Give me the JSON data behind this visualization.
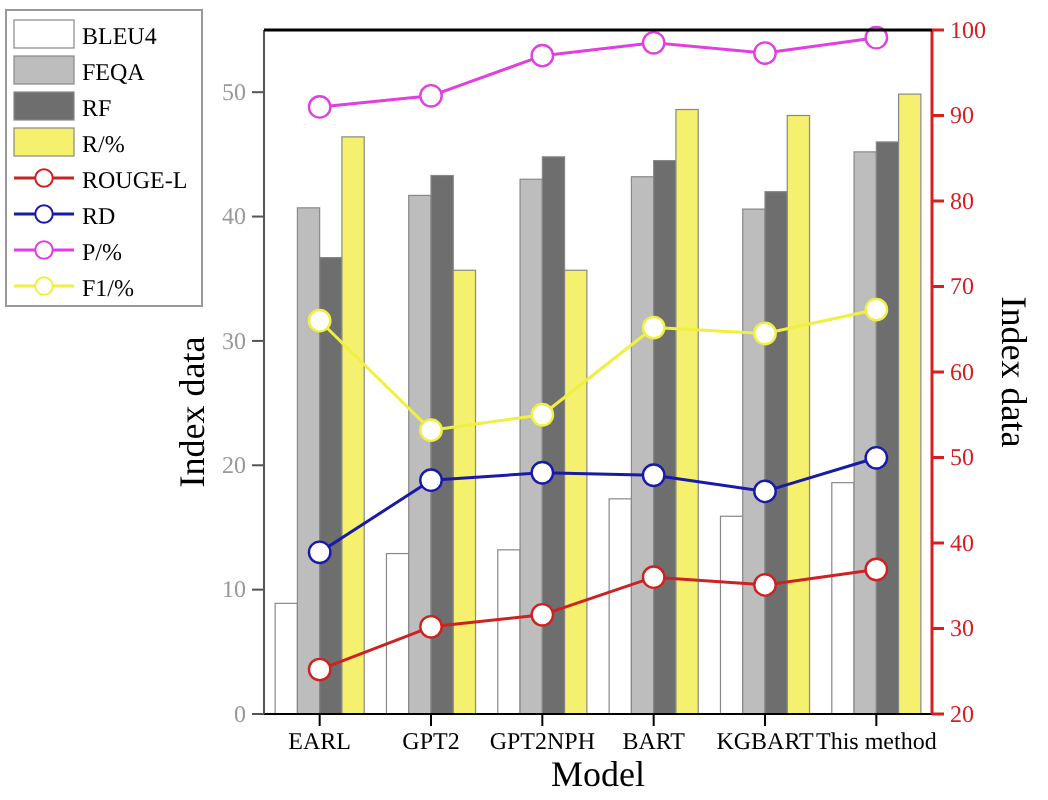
{
  "chart_data": {
    "type": "bar",
    "xlabel": "Model",
    "ylabel": "Index data",
    "y2label": "Index data",
    "categories": [
      "EARL",
      "GPT2",
      "GPT2NPH",
      "BART",
      "KGBART",
      "This method"
    ],
    "ylim": [
      0,
      55
    ],
    "yticks": [
      0,
      10,
      20,
      30,
      40,
      50
    ],
    "y2lim": [
      20,
      100
    ],
    "y2ticks": [
      20,
      30,
      40,
      50,
      60,
      70,
      80,
      90,
      100
    ],
    "grid": false,
    "legend": "top left",
    "marker": "circle",
    "series": [
      {
        "name": "BLEU4",
        "type": "bar",
        "color": "#ffffff",
        "values": [
          8.9,
          12.9,
          13.2,
          17.3,
          15.9,
          18.6
        ]
      },
      {
        "name": "FEQA",
        "type": "bar",
        "color": "#bdbdbd",
        "values": [
          40.7,
          41.7,
          43.0,
          43.2,
          40.6,
          45.2
        ]
      },
      {
        "name": "RF",
        "type": "bar",
        "color": "#6e6e6e",
        "values": [
          36.7,
          43.3,
          44.8,
          44.5,
          42.0,
          46.0
        ]
      },
      {
        "name": "R/%",
        "type": "bar",
        "axis": "y2",
        "color": "#f5f06e",
        "values": [
          87.5,
          71.9,
          71.9,
          90.7,
          90.0,
          92.5
        ]
      },
      {
        "name": "ROUGE-L",
        "type": "line",
        "axis": "y2",
        "color": "#cc2222",
        "values": [
          25.2,
          30.2,
          31.6,
          36.0,
          35.1,
          36.9
        ]
      },
      {
        "name": "RD",
        "type": "line",
        "color": "#1a1aa8",
        "values": [
          13.0,
          18.8,
          19.4,
          19.2,
          17.9,
          20.6
        ]
      },
      {
        "name": "P/%",
        "type": "line",
        "axis": "y2",
        "color": "#e040e0",
        "values": [
          91.0,
          92.3,
          97.0,
          98.5,
          97.3,
          99.1
        ]
      },
      {
        "name": "F1/%",
        "type": "line",
        "axis": "y2",
        "color": "#f0f040",
        "values": [
          66.0,
          53.2,
          55.0,
          65.2,
          64.5,
          67.3
        ]
      }
    ]
  }
}
